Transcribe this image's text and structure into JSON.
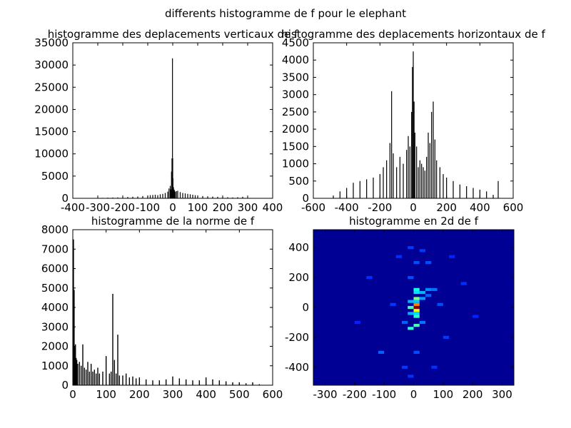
{
  "figure": {
    "suptitle": "differents histogramme de f pour le elephant"
  },
  "chart_data": [
    {
      "id": "vertical",
      "type": "bar",
      "title": "histogramme des deplacements verticaux de f",
      "xlabel": "",
      "ylabel": "",
      "xlim": [
        -400,
        400
      ],
      "ylim": [
        0,
        35000
      ],
      "xticks": [
        -400,
        -300,
        -200,
        -100,
        0,
        100,
        200,
        300,
        400
      ],
      "yticks": [
        0,
        5000,
        10000,
        15000,
        20000,
        25000,
        30000,
        35000
      ],
      "grid": false,
      "bins": {
        "x": [
          -320,
          -300,
          -280,
          -260,
          -240,
          -220,
          -200,
          -180,
          -160,
          -140,
          -120,
          -100,
          -90,
          -80,
          -70,
          -60,
          -50,
          -40,
          -30,
          -20,
          -15,
          -10,
          -7,
          -5,
          -3,
          -1,
          0,
          1,
          3,
          5,
          7,
          10,
          15,
          20,
          30,
          40,
          50,
          60,
          70,
          80,
          90,
          100,
          120,
          140,
          160,
          180,
          200,
          220,
          240,
          260,
          280,
          300,
          320
        ],
        "values": [
          50,
          80,
          100,
          150,
          180,
          200,
          250,
          300,
          350,
          400,
          500,
          600,
          700,
          750,
          800,
          700,
          900,
          1000,
          1200,
          1500,
          2200,
          2800,
          2000,
          6000,
          9000,
          31500,
          9000,
          4500,
          2500,
          2000,
          1800,
          1500,
          1600,
          1700,
          1400,
          1200,
          1100,
          1000,
          900,
          800,
          700,
          600,
          500,
          450,
          400,
          350,
          300,
          250,
          200,
          250,
          350,
          150,
          80
        ]
      }
    },
    {
      "id": "horizontal",
      "type": "bar",
      "title": "histogramme des deplacements horizontaux de f",
      "xlabel": "",
      "ylabel": "",
      "xlim": [
        -600,
        600
      ],
      "ylim": [
        0,
        4500
      ],
      "xticks": [
        -600,
        -400,
        -200,
        0,
        200,
        400,
        600
      ],
      "yticks": [
        0,
        500,
        1000,
        1500,
        2000,
        2500,
        3000,
        3500,
        4000,
        4500
      ],
      "grid": false,
      "bins": {
        "x": [
          -480,
          -440,
          -400,
          -360,
          -320,
          -280,
          -240,
          -200,
          -180,
          -160,
          -140,
          -130,
          -120,
          -100,
          -80,
          -60,
          -40,
          -30,
          -20,
          -10,
          -5,
          0,
          5,
          10,
          20,
          30,
          40,
          50,
          60,
          70,
          80,
          90,
          100,
          110,
          120,
          130,
          140,
          160,
          180,
          200,
          240,
          280,
          320,
          360,
          400,
          440,
          480,
          510
        ],
        "values": [
          80,
          200,
          300,
          450,
          500,
          550,
          600,
          700,
          900,
          1100,
          1600,
          3100,
          1300,
          900,
          1200,
          1000,
          1400,
          1800,
          1500,
          2500,
          3800,
          4250,
          2800,
          1900,
          1500,
          900,
          1100,
          1000,
          900,
          800,
          1200,
          1900,
          1600,
          2500,
          2800,
          1700,
          1100,
          900,
          700,
          600,
          500,
          400,
          350,
          300,
          250,
          200,
          100,
          500
        ]
      }
    },
    {
      "id": "norme",
      "type": "bar",
      "title": "histogramme de la norme de f",
      "xlabel": "",
      "ylabel": "",
      "xlim": [
        0,
        600
      ],
      "ylim": [
        0,
        8000
      ],
      "xticks": [
        0,
        100,
        200,
        300,
        400,
        500,
        600
      ],
      "yticks": [
        0,
        1000,
        2000,
        3000,
        4000,
        5000,
        6000,
        7000,
        8000
      ],
      "grid": false,
      "bins": {
        "x": [
          2,
          4,
          6,
          8,
          10,
          12,
          15,
          20,
          25,
          30,
          35,
          40,
          45,
          50,
          55,
          60,
          65,
          70,
          75,
          80,
          90,
          100,
          110,
          115,
          120,
          125,
          130,
          135,
          140,
          150,
          160,
          170,
          180,
          190,
          200,
          220,
          240,
          260,
          280,
          300,
          320,
          340,
          360,
          380,
          400,
          420,
          440,
          460,
          480,
          500,
          520,
          540,
          560
        ],
        "values": [
          7500,
          4900,
          2000,
          2100,
          1400,
          1300,
          1100,
          1200,
          1000,
          2100,
          900,
          800,
          1200,
          700,
          1100,
          700,
          800,
          600,
          900,
          600,
          700,
          1500,
          600,
          700,
          4700,
          1300,
          600,
          2600,
          500,
          500,
          600,
          400,
          450,
          350,
          400,
          300,
          250,
          250,
          300,
          450,
          350,
          300,
          250,
          250,
          400,
          300,
          250,
          200,
          150,
          150,
          100,
          150,
          50
        ]
      }
    },
    {
      "id": "hist2d",
      "type": "heatmap",
      "title": "histogramme en 2d de f",
      "xlabel": "",
      "ylabel": "",
      "xlim": [
        -340,
        340
      ],
      "ylim": [
        -520,
        520
      ],
      "xticks": [
        -300,
        -200,
        -100,
        0,
        100,
        200,
        300
      ],
      "yticks": [
        -400,
        -200,
        0,
        200,
        400
      ],
      "colormap": "jet",
      "cells": [
        {
          "x": 10,
          "y": 0,
          "value": 1.0
        },
        {
          "x": 10,
          "y": 20,
          "value": 0.75
        },
        {
          "x": 10,
          "y": -20,
          "value": 0.6
        },
        {
          "x": -10,
          "y": 0,
          "value": 0.45
        },
        {
          "x": 10,
          "y": 60,
          "value": 0.5
        },
        {
          "x": 10,
          "y": -60,
          "value": 0.42
        },
        {
          "x": 10,
          "y": 120,
          "value": 0.4
        },
        {
          "x": 10,
          "y": -120,
          "value": 0.45
        },
        {
          "x": -10,
          "y": -140,
          "value": 0.42
        },
        {
          "x": 10,
          "y": 100,
          "value": 0.35
        },
        {
          "x": 30,
          "y": 100,
          "value": 0.3
        },
        {
          "x": 30,
          "y": 60,
          "value": 0.28
        },
        {
          "x": -10,
          "y": 40,
          "value": 0.3
        },
        {
          "x": -10,
          "y": -40,
          "value": 0.3
        },
        {
          "x": 10,
          "y": 40,
          "value": 0.32
        },
        {
          "x": 10,
          "y": -40,
          "value": 0.34
        },
        {
          "x": 50,
          "y": 120,
          "value": 0.26
        },
        {
          "x": 70,
          "y": 120,
          "value": 0.24
        },
        {
          "x": 50,
          "y": 80,
          "value": 0.22
        },
        {
          "x": -30,
          "y": -100,
          "value": 0.22
        },
        {
          "x": 30,
          "y": -100,
          "value": 0.24
        },
        {
          "x": -10,
          "y": 200,
          "value": 0.2
        },
        {
          "x": 10,
          "y": 300,
          "value": 0.2
        },
        {
          "x": -10,
          "y": 400,
          "value": 0.18
        },
        {
          "x": 50,
          "y": 300,
          "value": 0.2
        },
        {
          "x": 30,
          "y": 380,
          "value": 0.18
        },
        {
          "x": 10,
          "y": -300,
          "value": 0.2
        },
        {
          "x": -30,
          "y": -400,
          "value": 0.18
        },
        {
          "x": -110,
          "y": -300,
          "value": 0.22
        },
        {
          "x": 110,
          "y": -200,
          "value": 0.18
        },
        {
          "x": -150,
          "y": 200,
          "value": 0.17
        },
        {
          "x": 170,
          "y": 160,
          "value": 0.17
        },
        {
          "x": -190,
          "y": -100,
          "value": 0.16
        },
        {
          "x": 210,
          "y": -60,
          "value": 0.16
        },
        {
          "x": 90,
          "y": 20,
          "value": 0.2
        },
        {
          "x": -70,
          "y": 20,
          "value": 0.18
        },
        {
          "x": -50,
          "y": 340,
          "value": 0.17
        },
        {
          "x": 70,
          "y": -400,
          "value": 0.17
        },
        {
          "x": -10,
          "y": -460,
          "value": 0.17
        },
        {
          "x": 130,
          "y": 340,
          "value": 0.16
        }
      ]
    }
  ]
}
